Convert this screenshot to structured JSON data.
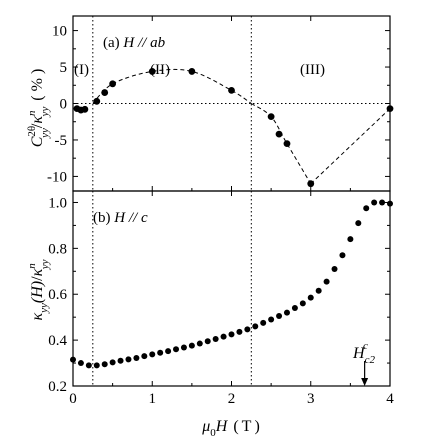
{
  "chart_data": [
    {
      "panel": "a",
      "type": "scatter",
      "title_prefix": "(a)",
      "title_symbol": "H",
      "title_relation": "//",
      "title_direction": "ab",
      "ylabel_main": "C",
      "ylabel_sup": "2θ",
      "ylabel_sub": "yy",
      "ylabel_slash": "/",
      "ylabel_kappa": "κ",
      "ylabel_kappa_sup": "n",
      "ylabel_kappa_sub": "yy",
      "ylabel_unit_open": "(",
      "ylabel_unit": "%",
      "ylabel_unit_close": ")",
      "xlim": [
        0,
        4
      ],
      "ylim": [
        -12,
        12
      ],
      "yticks": [
        "10",
        "5",
        "0",
        "-5",
        "-10"
      ],
      "ytick_values": [
        10,
        5,
        0,
        -5,
        -10
      ],
      "region_labels": [
        "(I)",
        "(II)",
        "(III)"
      ],
      "vertical_lines_x": [
        0.25,
        2.25
      ],
      "horizontal_line_y": 0,
      "series": [
        {
          "x": [
            0.05,
            0.1,
            0.15,
            0.3,
            0.4,
            0.5,
            1.0,
            1.5,
            2.0,
            2.5,
            2.6,
            2.7,
            3.0,
            4.0
          ],
          "y": [
            -0.7,
            -0.9,
            -0.8,
            0.3,
            1.5,
            2.7,
            4.4,
            4.4,
            1.8,
            -1.8,
            -4.2,
            -5.5,
            -11.0,
            -0.7
          ],
          "style": "filled-circle"
        }
      ],
      "guide_curves": [
        {
          "x": [
            0.25,
            0.5,
            1.0,
            1.5,
            2.0,
            2.25
          ],
          "y": [
            0.0,
            2.7,
            4.4,
            4.4,
            1.8,
            0.0
          ]
        },
        {
          "x": [
            2.25,
            2.5,
            2.7,
            3.0
          ],
          "y": [
            0.0,
            -1.8,
            -5.5,
            -11.0
          ]
        },
        {
          "x": [
            3.0,
            4.0
          ],
          "y": [
            -11.0,
            -0.7
          ]
        }
      ]
    },
    {
      "panel": "b",
      "type": "scatter",
      "title_prefix": "(b)",
      "title_symbol": "H",
      "title_relation": "//",
      "title_direction": "c",
      "ylabel_kappa": "κ",
      "ylabel_sub": "yy",
      "ylabel_arg": "(H)",
      "ylabel_slash": "/",
      "ylabel_kappa_sup": "n",
      "ylabel_kappa_sub": "yy",
      "xlabel_mu": "μ",
      "xlabel_sub": "0",
      "xlabel_symbol": "H",
      "xlabel_unit_open": "(",
      "xlabel_unit": "T",
      "xlabel_unit_close": ")",
      "xlim": [
        0,
        4
      ],
      "ylim": [
        0.2,
        1.05
      ],
      "xticks": [
        "0",
        "1",
        "2",
        "3",
        "4"
      ],
      "xtick_values": [
        0,
        1,
        2,
        3,
        4
      ],
      "yticks": [
        "1.0",
        "0.8",
        "0.6",
        "0.4",
        "0.2"
      ],
      "ytick_values": [
        1.0,
        0.8,
        0.6,
        0.4,
        0.2
      ],
      "vertical_lines_x": [
        0.25,
        2.25
      ],
      "annotation_symbol": "H",
      "annotation_sub": "c2",
      "annotation_sup": "c",
      "annotation_arrow_x": 3.68,
      "series": [
        {
          "x": [
            0.0,
            0.1,
            0.2,
            0.3,
            0.4,
            0.5,
            0.6,
            0.7,
            0.8,
            0.9,
            1.0,
            1.1,
            1.2,
            1.3,
            1.4,
            1.5,
            1.6,
            1.7,
            1.8,
            1.9,
            2.0,
            2.1,
            2.2,
            2.3,
            2.4,
            2.5,
            2.6,
            2.7,
            2.8,
            2.9,
            3.0,
            3.1,
            3.2,
            3.3,
            3.4,
            3.5,
            3.6,
            3.7,
            3.8,
            3.9,
            4.0
          ],
          "y": [
            0.315,
            0.3,
            0.29,
            0.29,
            0.295,
            0.303,
            0.31,
            0.316,
            0.322,
            0.33,
            0.338,
            0.345,
            0.352,
            0.36,
            0.368,
            0.376,
            0.385,
            0.395,
            0.405,
            0.415,
            0.425,
            0.436,
            0.447,
            0.46,
            0.475,
            0.49,
            0.505,
            0.52,
            0.54,
            0.56,
            0.585,
            0.615,
            0.655,
            0.71,
            0.77,
            0.84,
            0.91,
            0.975,
            1.0,
            1.0,
            0.995
          ],
          "style": "filled-circle"
        }
      ]
    }
  ]
}
